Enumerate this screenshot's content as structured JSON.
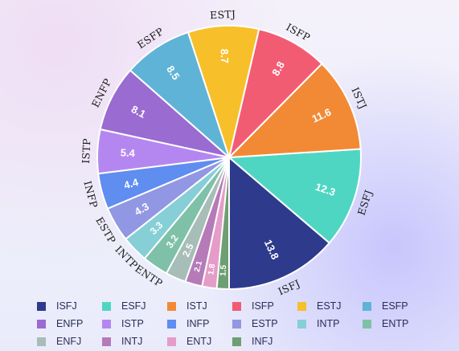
{
  "chart_data": {
    "type": "pie",
    "direction": "counterclockwise",
    "start_category": "ISFJ",
    "slices": [
      {
        "label": "ISFJ",
        "value": 13.8,
        "color": "#2e3a8c",
        "value_label": "13.8",
        "category_label": "ISFJ"
      },
      {
        "label": "ESFJ",
        "value": 12.3,
        "color": "#4fd6c3",
        "value_label": "12.3",
        "category_label": "ESFJ"
      },
      {
        "label": "ISTJ",
        "value": 11.6,
        "color": "#f28a35",
        "value_label": "11.6",
        "category_label": "ISTJ"
      },
      {
        "label": "ISFP",
        "value": 8.8,
        "color": "#f25c73",
        "value_label": "8.8",
        "category_label": "ISFP"
      },
      {
        "label": "ESTJ",
        "value": 8.7,
        "color": "#f7bf2a",
        "value_label": "8.7",
        "category_label": "ESTJ"
      },
      {
        "label": "ESFP",
        "value": 8.5,
        "color": "#5fb3d6",
        "value_label": "8.5",
        "category_label": "ESFP"
      },
      {
        "label": "ENFP",
        "value": 8.1,
        "color": "#9a6bd1",
        "value_label": "8.1",
        "category_label": "ENFP"
      },
      {
        "label": "ISTP",
        "value": 5.4,
        "color": "#b487f0",
        "value_label": "5.4",
        "category_label": "ISTP"
      },
      {
        "label": "INFP",
        "value": 4.4,
        "color": "#5f8df0",
        "value_label": "4.4",
        "category_label": "INFP"
      },
      {
        "label": "ESTP",
        "value": 4.3,
        "color": "#9297e3",
        "value_label": "4.3",
        "category_label": "ESTP"
      },
      {
        "label": "INTP",
        "value": 3.3,
        "color": "#86cfd6",
        "value_label": "3.3",
        "category_label": "INTP"
      },
      {
        "label": "ENTP",
        "value": 3.2,
        "color": "#7fc1a8",
        "value_label": "3.2",
        "category_label": "ENTP"
      },
      {
        "label": "ENFJ",
        "value": 2.5,
        "color": "#a7bdb7",
        "value_label": "2.5",
        "category_label": ""
      },
      {
        "label": "INTJ",
        "value": 2.1,
        "color": "#b57ab8",
        "value_label": "2.1",
        "category_label": ""
      },
      {
        "label": "ENTJ",
        "value": 1.8,
        "color": "#e59cc8",
        "value_label": "1.8",
        "category_label": ""
      },
      {
        "label": "INFJ",
        "value": 1.5,
        "color": "#6e9f72",
        "value_label": "1.5",
        "category_label": ""
      }
    ],
    "legend_position": "bottom"
  }
}
